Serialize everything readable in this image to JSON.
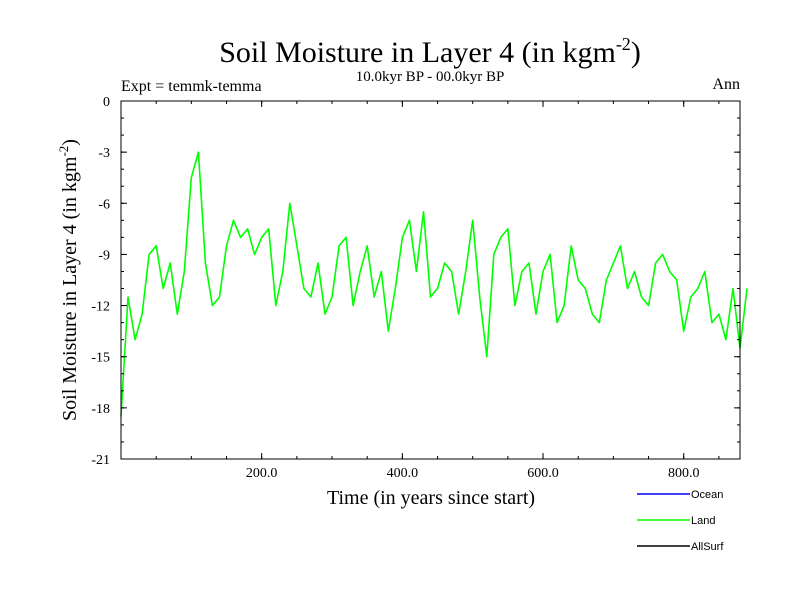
{
  "chart_data": {
    "type": "line",
    "title": "Soil Moisture in Layer 4 (in kgm",
    "title_sup": "-2",
    "title_close": ")",
    "subtitle": "10.0kyr BP - 00.0kyr BP",
    "left_label": "Expt = temmk-temma",
    "right_label": "Ann",
    "xlabel": "Time (in years since start)",
    "ylabel": "Soil Moisture in Layer 4 (in kgm",
    "ylabel_sup": "-2",
    "ylabel_close": ")",
    "xlim": [
      0,
      880
    ],
    "ylim": [
      -21,
      0
    ],
    "x_ticks": [
      200,
      400,
      600,
      800
    ],
    "x_tick_labels": [
      "200.0",
      "400.0",
      "600.0",
      "800.0"
    ],
    "y_ticks": [
      0,
      -3,
      -6,
      -9,
      -12,
      -15,
      -18,
      -21
    ],
    "y_tick_labels": [
      "0",
      "-3",
      "-6",
      "-9",
      "-12",
      "-15",
      "-18",
      "-21"
    ],
    "grid": false,
    "legend_position": "bottom-right",
    "series": [
      {
        "name": "Ocean",
        "color": "#0000ff",
        "x_step": 10,
        "values": []
      },
      {
        "name": "Land",
        "color": "#00ff00",
        "x_step": 10,
        "values": [
          -18.5,
          -11.5,
          -14.0,
          -12.5,
          -9.0,
          -8.5,
          -11.0,
          -9.5,
          -12.5,
          -10.0,
          -4.5,
          -3.0,
          -9.5,
          -12.0,
          -11.5,
          -8.5,
          -7.0,
          -8.0,
          -7.5,
          -9.0,
          -8.0,
          -7.5,
          -12.0,
          -10.0,
          -6.0,
          -8.5,
          -11.0,
          -11.5,
          -9.5,
          -12.5,
          -11.5,
          -8.5,
          -8.0,
          -12.0,
          -10.0,
          -8.5,
          -11.5,
          -10.0,
          -13.5,
          -11.0,
          -8.0,
          -7.0,
          -10.0,
          -6.5,
          -11.5,
          -11.0,
          -9.5,
          -10.0,
          -12.5,
          -10.0,
          -7.0,
          -11.5,
          -15.0,
          -9.0,
          -8.0,
          -7.5,
          -12.0,
          -10.0,
          -9.5,
          -12.5,
          -10.0,
          -9.0,
          -13.0,
          -12.0,
          -8.5,
          -10.5,
          -11.0,
          -12.5,
          -13.0,
          -10.5,
          -9.5,
          -8.5,
          -11.0,
          -10.0,
          -11.5,
          -12.0,
          -9.5,
          -9.0,
          -10.0,
          -10.5,
          -13.5,
          -11.5,
          -11.0,
          -10.0,
          -13.0,
          -12.5,
          -14.0,
          -11.0,
          -14.5,
          -11.0
        ]
      },
      {
        "name": "AllSurf",
        "color": "#000000",
        "x_step": 10,
        "values": []
      }
    ]
  }
}
